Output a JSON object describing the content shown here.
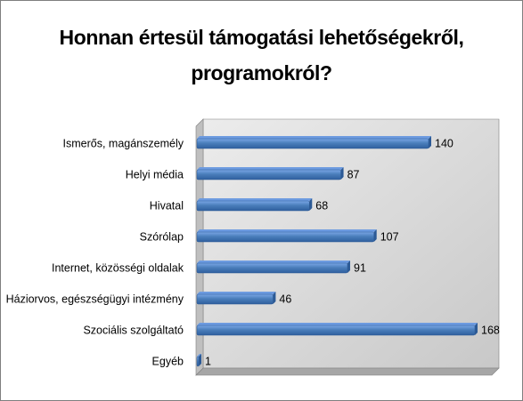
{
  "chart_data": {
    "type": "bar",
    "orientation": "horizontal",
    "title": [
      "Honnan értesül támogatási lehetőségekről,",
      "programokról?"
    ],
    "categories": [
      "Ismerős, magánszemély",
      "Helyi média",
      "Hivatal",
      "Szórólap",
      "Internet, közösségi oldalak",
      "Háziorvos, egészségügyi intézmény",
      "Szociális szolgáltató",
      "Egyéb"
    ],
    "values": [
      140,
      87,
      68,
      107,
      91,
      46,
      168,
      1
    ],
    "xlim": [
      0,
      168
    ],
    "grid": false,
    "legend": "none",
    "colors": {
      "bar_main": "#4a7ebb",
      "bar_light": "#6d9be0",
      "bar_dark": "#2c5a96",
      "wall": "#d9d9d9",
      "wall_side": "#bfbfbf",
      "floor": "#a6a6a6",
      "axis": "#808080"
    }
  }
}
